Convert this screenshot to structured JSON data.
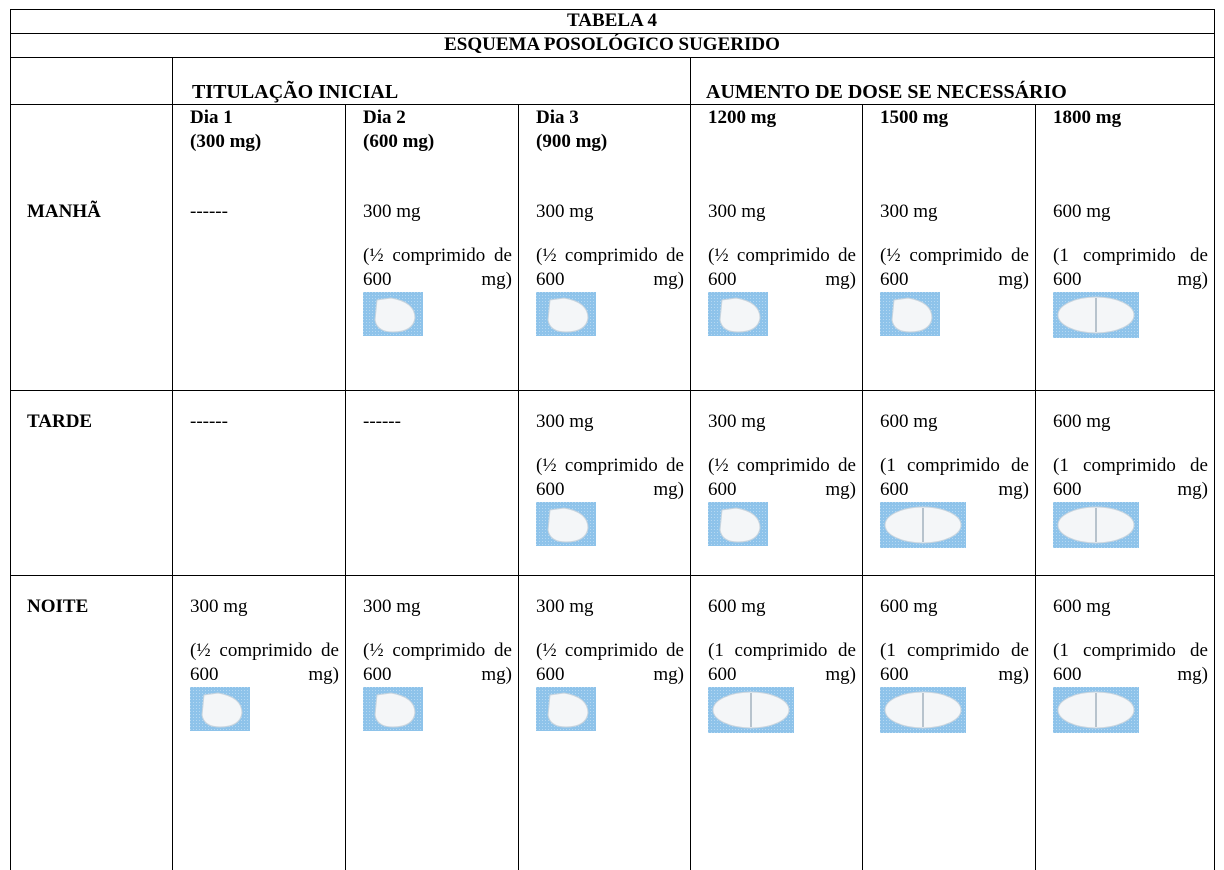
{
  "title": "TABELA 4",
  "subtitle": "ESQUEMA POSOLÓGICO SUGERIDO",
  "groups": [
    "TITULAÇÃO INICIAL",
    "AUMENTO DE DOSE SE NECESSÁRIO"
  ],
  "columns": [
    {
      "label": "Dia 1",
      "dose": "(300 mg)"
    },
    {
      "label": "Dia 2",
      "dose": "(600 mg)"
    },
    {
      "label": "Dia 3",
      "dose": "(900 mg)"
    },
    {
      "label": "1200 mg"
    },
    {
      "label": "1500 mg"
    },
    {
      "label": "1800 mg"
    }
  ],
  "rows": [
    {
      "label": "MANHÃ",
      "cells": [
        {
          "dose": "------"
        },
        {
          "dose": "300 mg",
          "note": "(½ comprimido de 600 mg)"
        },
        {
          "dose": "300 mg",
          "note": "(½ comprimido de 600 mg)"
        },
        {
          "dose": "300 mg",
          "note": "(½ comprimido de 600 mg)"
        },
        {
          "dose": "300 mg",
          "note": "(½ comprimido de 600 mg)"
        },
        {
          "dose": "600 mg",
          "note": "(1 comprimido de 600 mg)"
        }
      ]
    },
    {
      "label": "TARDE",
      "cells": [
        {
          "dose": "------"
        },
        {
          "dose": "------"
        },
        {
          "dose": "300 mg",
          "note": "(½ comprimido de 600 mg)"
        },
        {
          "dose": "300 mg",
          "note": "(½ comprimido de 600 mg)"
        },
        {
          "dose": "600 mg",
          "note": "(1 comprimido de 600 mg)"
        },
        {
          "dose": "600 mg",
          "note": "(1 comprimido de 600 mg)"
        }
      ]
    },
    {
      "label": "NOITE",
      "cells": [
        {
          "dose": "300 mg",
          "note": "(½ comprimido de 600 mg)"
        },
        {
          "dose": "300 mg",
          "note": "(½ comprimido de 600 mg)"
        },
        {
          "dose": "300 mg",
          "note": "(½ comprimido de 600 mg)"
        },
        {
          "dose": "600 mg",
          "note": "(1 comprimido de 600 mg)"
        },
        {
          "dose": "600 mg",
          "note": "(1 comprimido de 600 mg)"
        },
        {
          "dose": "600 mg",
          "note": "(1 comprimido de 600 mg)"
        }
      ]
    }
  ]
}
